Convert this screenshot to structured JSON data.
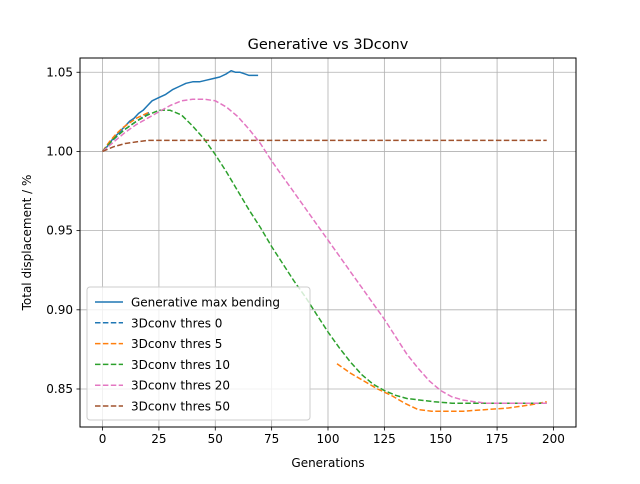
{
  "chart_data": {
    "type": "line",
    "title": "Generative vs 3Dconv",
    "xlabel": "Generations",
    "ylabel": "Total displacement / %",
    "xlim": [
      -10,
      210
    ],
    "ylim": [
      0.826,
      1.059
    ],
    "xticks": [
      0,
      25,
      50,
      75,
      100,
      125,
      150,
      175,
      200
    ],
    "yticks": [
      0.85,
      0.9,
      0.95,
      1.0,
      1.05
    ],
    "xtick_labels": [
      "0",
      "25",
      "50",
      "75",
      "100",
      "125",
      "150",
      "175",
      "200"
    ],
    "ytick_labels": [
      "0.85",
      "0.90",
      "0.95",
      "1.00",
      "1.05"
    ],
    "grid": true,
    "legend_position": "lower-left",
    "series": [
      {
        "name": "Generative max bending",
        "color": "#1f77b4",
        "style": "solid",
        "points": [
          [
            0,
            1.0
          ],
          [
            2,
            1.003
          ],
          [
            4,
            1.007
          ],
          [
            6,
            1.01
          ],
          [
            8,
            1.013
          ],
          [
            10,
            1.016
          ],
          [
            12,
            1.019
          ],
          [
            14,
            1.021
          ],
          [
            16,
            1.024
          ],
          [
            18,
            1.026
          ],
          [
            20,
            1.029
          ],
          [
            22,
            1.032
          ],
          [
            25,
            1.034
          ],
          [
            28,
            1.036
          ],
          [
            31,
            1.039
          ],
          [
            34,
            1.041
          ],
          [
            37,
            1.043
          ],
          [
            40,
            1.044
          ],
          [
            43,
            1.044
          ],
          [
            46,
            1.045
          ],
          [
            49,
            1.046
          ],
          [
            52,
            1.047
          ],
          [
            55,
            1.049
          ],
          [
            57,
            1.051
          ],
          [
            59,
            1.05
          ],
          [
            61,
            1.05
          ],
          [
            63,
            1.049
          ],
          [
            65,
            1.048
          ],
          [
            67,
            1.048
          ],
          [
            69,
            1.048
          ]
        ]
      },
      {
        "name": "3Dconv thres 0",
        "color": "#1f77b4",
        "style": "dashed",
        "points": [
          [
            0,
            1.0
          ],
          [
            3,
            1.005
          ],
          [
            6,
            1.009
          ],
          [
            9,
            1.013
          ],
          [
            12,
            1.016
          ],
          [
            15,
            1.019
          ],
          [
            18,
            1.022
          ],
          [
            21,
            1.025
          ]
        ]
      },
      {
        "name": "3Dconv thres 5",
        "color": "#ff7f0e",
        "style": "dashed",
        "points": [
          [
            0,
            1.0
          ],
          [
            3,
            1.006
          ],
          [
            6,
            1.011
          ],
          [
            9,
            1.015
          ],
          [
            12,
            1.018
          ],
          [
            15,
            1.021
          ],
          [
            18,
            1.023
          ],
          [
            21,
            1.025
          ],
          [
            104,
            0.866
          ],
          [
            110,
            0.86
          ],
          [
            116,
            0.855
          ],
          [
            122,
            0.85
          ],
          [
            128,
            0.846
          ],
          [
            134,
            0.841
          ],
          [
            140,
            0.837
          ],
          [
            146,
            0.836
          ],
          [
            152,
            0.836
          ],
          [
            160,
            0.836
          ],
          [
            170,
            0.837
          ],
          [
            180,
            0.838
          ],
          [
            190,
            0.84
          ],
          [
            197,
            0.842
          ]
        ]
      },
      {
        "name": "3Dconv thres 10",
        "color": "#2ca02c",
        "style": "dashed",
        "points": [
          [
            0,
            1.0
          ],
          [
            5,
            1.008
          ],
          [
            10,
            1.014
          ],
          [
            15,
            1.019
          ],
          [
            20,
            1.023
          ],
          [
            25,
            1.026
          ],
          [
            30,
            1.026
          ],
          [
            35,
            1.023
          ],
          [
            40,
            1.016
          ],
          [
            45,
            1.008
          ],
          [
            50,
            0.998
          ],
          [
            55,
            0.987
          ],
          [
            60,
            0.975
          ],
          [
            65,
            0.963
          ],
          [
            70,
            0.952
          ],
          [
            75,
            0.94
          ],
          [
            80,
            0.929
          ],
          [
            85,
            0.918
          ],
          [
            90,
            0.908
          ],
          [
            95,
            0.897
          ],
          [
            100,
            0.886
          ],
          [
            105,
            0.876
          ],
          [
            110,
            0.867
          ],
          [
            115,
            0.859
          ],
          [
            120,
            0.853
          ],
          [
            125,
            0.849
          ],
          [
            130,
            0.846
          ],
          [
            135,
            0.844
          ],
          [
            147,
            0.842
          ],
          [
            155,
            0.841
          ],
          [
            170,
            0.841
          ],
          [
            185,
            0.841
          ],
          [
            197,
            0.841
          ]
        ]
      },
      {
        "name": "3Dconv thres 20",
        "color": "#e377c2",
        "style": "dashed",
        "points": [
          [
            0,
            1.0
          ],
          [
            5,
            1.006
          ],
          [
            10,
            1.012
          ],
          [
            15,
            1.017
          ],
          [
            20,
            1.021
          ],
          [
            25,
            1.025
          ],
          [
            30,
            1.029
          ],
          [
            35,
            1.032
          ],
          [
            40,
            1.033
          ],
          [
            45,
            1.033
          ],
          [
            50,
            1.032
          ],
          [
            55,
            1.028
          ],
          [
            60,
            1.022
          ],
          [
            65,
            1.014
          ],
          [
            70,
            1.005
          ],
          [
            75,
            0.994
          ],
          [
            80,
            0.984
          ],
          [
            85,
            0.974
          ],
          [
            90,
            0.964
          ],
          [
            95,
            0.954
          ],
          [
            100,
            0.944
          ],
          [
            105,
            0.934
          ],
          [
            110,
            0.924
          ],
          [
            115,
            0.914
          ],
          [
            120,
            0.904
          ],
          [
            125,
            0.894
          ],
          [
            130,
            0.883
          ],
          [
            135,
            0.872
          ],
          [
            140,
            0.863
          ],
          [
            145,
            0.855
          ],
          [
            150,
            0.849
          ],
          [
            155,
            0.845
          ],
          [
            160,
            0.843
          ],
          [
            165,
            0.842
          ],
          [
            170,
            0.841
          ],
          [
            175,
            0.841
          ],
          [
            180,
            0.841
          ],
          [
            185,
            0.841
          ],
          [
            190,
            0.841
          ],
          [
            197,
            0.841
          ]
        ]
      },
      {
        "name": "3Dconv thres 50",
        "color": "#a0522d",
        "style": "dashed",
        "points": [
          [
            0,
            1.0
          ],
          [
            5,
            1.003
          ],
          [
            10,
            1.005
          ],
          [
            15,
            1.006
          ],
          [
            20,
            1.007
          ],
          [
            25,
            1.007
          ],
          [
            30,
            1.007
          ],
          [
            50,
            1.007
          ],
          [
            75,
            1.007
          ],
          [
            100,
            1.007
          ],
          [
            125,
            1.007
          ],
          [
            150,
            1.007
          ],
          [
            175,
            1.007
          ],
          [
            197,
            1.007
          ]
        ]
      }
    ]
  }
}
